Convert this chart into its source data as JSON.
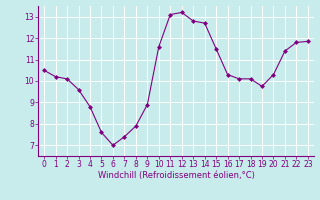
{
  "x": [
    0,
    1,
    2,
    3,
    4,
    5,
    6,
    7,
    8,
    9,
    10,
    11,
    12,
    13,
    14,
    15,
    16,
    17,
    18,
    19,
    20,
    21,
    22,
    23
  ],
  "y": [
    10.5,
    10.2,
    10.1,
    9.6,
    8.8,
    7.6,
    7.0,
    7.4,
    7.9,
    8.9,
    11.6,
    13.1,
    13.2,
    12.8,
    12.7,
    11.5,
    10.3,
    10.1,
    10.1,
    9.75,
    10.3,
    11.4,
    11.8,
    11.85
  ],
  "xlim": [
    -0.5,
    23.5
  ],
  "ylim": [
    6.5,
    13.5
  ],
  "yticks": [
    7,
    8,
    9,
    10,
    11,
    12,
    13
  ],
  "xticks": [
    0,
    1,
    2,
    3,
    4,
    5,
    6,
    7,
    8,
    9,
    10,
    11,
    12,
    13,
    14,
    15,
    16,
    17,
    18,
    19,
    20,
    21,
    22,
    23
  ],
  "xlabel": "Windchill (Refroidissement éolien,°C)",
  "line_color": "#800080",
  "marker": "D",
  "marker_size": 2,
  "background_color": "#c8ecec",
  "grid_color": "#aadddd",
  "tick_color": "#800080",
  "label_color": "#800080",
  "tick_fontsize": 5.5,
  "xlabel_fontsize": 6.0
}
